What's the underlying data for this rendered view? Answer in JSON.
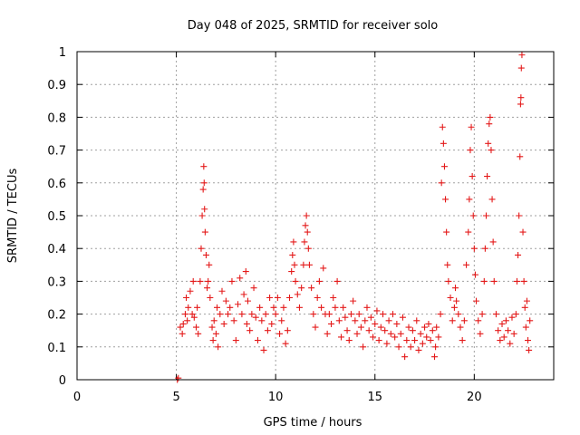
{
  "chart_data": {
    "type": "scatter",
    "title": "Day 048 of 2025, SRMTID for receiver solo",
    "xlabel": "GPS time / hours",
    "ylabel": "SRMTID / TECUs",
    "xlim": [
      0,
      24
    ],
    "ylim": [
      0,
      1
    ],
    "xticks": [
      0,
      5,
      10,
      15,
      20
    ],
    "yticks": [
      0,
      0.1,
      0.2,
      0.3,
      0.4,
      0.5,
      0.6,
      0.7,
      0.8,
      0.9,
      1
    ],
    "xtick_labels": [
      "0",
      "5",
      "10",
      "15",
      "20"
    ],
    "ytick_labels": [
      "0",
      "0.1",
      "0.2",
      "0.3",
      "0.4",
      "0.5",
      "0.6",
      "0.7",
      "0.8",
      "0.9",
      "1"
    ],
    "grid": true,
    "marker": "+",
    "series": [
      {
        "name": "SRMTID",
        "color": "#e41a1a",
        "points": [
          [
            5.05,
            0.0
          ],
          [
            5.1,
            0.005
          ],
          [
            5.2,
            0.16
          ],
          [
            5.3,
            0.14
          ],
          [
            5.35,
            0.17
          ],
          [
            5.45,
            0.2
          ],
          [
            5.5,
            0.25
          ],
          [
            5.55,
            0.18
          ],
          [
            5.6,
            0.22
          ],
          [
            5.7,
            0.27
          ],
          [
            5.8,
            0.2
          ],
          [
            5.85,
            0.3
          ],
          [
            5.9,
            0.19
          ],
          [
            6.0,
            0.16
          ],
          [
            6.05,
            0.22
          ],
          [
            6.1,
            0.14
          ],
          [
            6.2,
            0.3
          ],
          [
            6.25,
            0.4
          ],
          [
            6.3,
            0.5
          ],
          [
            6.35,
            0.58
          ],
          [
            6.38,
            0.65
          ],
          [
            6.4,
            0.6
          ],
          [
            6.42,
            0.52
          ],
          [
            6.45,
            0.45
          ],
          [
            6.5,
            0.38
          ],
          [
            6.55,
            0.28
          ],
          [
            6.6,
            0.3
          ],
          [
            6.65,
            0.35
          ],
          [
            6.7,
            0.25
          ],
          [
            6.8,
            0.16
          ],
          [
            6.85,
            0.12
          ],
          [
            6.9,
            0.18
          ],
          [
            7.0,
            0.14
          ],
          [
            7.05,
            0.22
          ],
          [
            7.1,
            0.1
          ],
          [
            7.2,
            0.2
          ],
          [
            7.3,
            0.27
          ],
          [
            7.4,
            0.17
          ],
          [
            7.5,
            0.24
          ],
          [
            7.6,
            0.2
          ],
          [
            7.7,
            0.22
          ],
          [
            7.8,
            0.3
          ],
          [
            7.9,
            0.18
          ],
          [
            8.0,
            0.12
          ],
          [
            8.1,
            0.23
          ],
          [
            8.2,
            0.31
          ],
          [
            8.3,
            0.2
          ],
          [
            8.4,
            0.26
          ],
          [
            8.5,
            0.33
          ],
          [
            8.55,
            0.17
          ],
          [
            8.6,
            0.24
          ],
          [
            8.7,
            0.15
          ],
          [
            8.8,
            0.2
          ],
          [
            8.9,
            0.28
          ],
          [
            9.0,
            0.19
          ],
          [
            9.1,
            0.12
          ],
          [
            9.2,
            0.22
          ],
          [
            9.3,
            0.18
          ],
          [
            9.4,
            0.09
          ],
          [
            9.5,
            0.2
          ],
          [
            9.6,
            0.15
          ],
          [
            9.7,
            0.25
          ],
          [
            9.8,
            0.17
          ],
          [
            9.9,
            0.22
          ],
          [
            10.0,
            0.2
          ],
          [
            10.1,
            0.25
          ],
          [
            10.2,
            0.14
          ],
          [
            10.3,
            0.18
          ],
          [
            10.4,
            0.22
          ],
          [
            10.5,
            0.11
          ],
          [
            10.6,
            0.15
          ],
          [
            10.7,
            0.25
          ],
          [
            10.8,
            0.33
          ],
          [
            10.85,
            0.38
          ],
          [
            10.9,
            0.42
          ],
          [
            10.95,
            0.35
          ],
          [
            11.0,
            0.3
          ],
          [
            11.1,
            0.26
          ],
          [
            11.2,
            0.22
          ],
          [
            11.3,
            0.28
          ],
          [
            11.4,
            0.35
          ],
          [
            11.45,
            0.42
          ],
          [
            11.5,
            0.47
          ],
          [
            11.55,
            0.5
          ],
          [
            11.6,
            0.45
          ],
          [
            11.65,
            0.4
          ],
          [
            11.7,
            0.35
          ],
          [
            11.8,
            0.28
          ],
          [
            11.9,
            0.2
          ],
          [
            12.0,
            0.16
          ],
          [
            12.1,
            0.25
          ],
          [
            12.2,
            0.3
          ],
          [
            12.3,
            0.22
          ],
          [
            12.4,
            0.34
          ],
          [
            12.5,
            0.2
          ],
          [
            12.6,
            0.14
          ],
          [
            12.7,
            0.2
          ],
          [
            12.8,
            0.17
          ],
          [
            12.9,
            0.25
          ],
          [
            13.0,
            0.22
          ],
          [
            13.1,
            0.3
          ],
          [
            13.2,
            0.18
          ],
          [
            13.3,
            0.13
          ],
          [
            13.4,
            0.22
          ],
          [
            13.5,
            0.19
          ],
          [
            13.6,
            0.15
          ],
          [
            13.7,
            0.12
          ],
          [
            13.8,
            0.2
          ],
          [
            13.9,
            0.24
          ],
          [
            14.0,
            0.18
          ],
          [
            14.1,
            0.14
          ],
          [
            14.2,
            0.2
          ],
          [
            14.3,
            0.16
          ],
          [
            14.4,
            0.1
          ],
          [
            14.5,
            0.18
          ],
          [
            14.6,
            0.22
          ],
          [
            14.7,
            0.15
          ],
          [
            14.8,
            0.19
          ],
          [
            14.9,
            0.13
          ],
          [
            15.0,
            0.17
          ],
          [
            15.1,
            0.21
          ],
          [
            15.2,
            0.12
          ],
          [
            15.3,
            0.16
          ],
          [
            15.4,
            0.2
          ],
          [
            15.5,
            0.15
          ],
          [
            15.6,
            0.11
          ],
          [
            15.7,
            0.18
          ],
          [
            15.8,
            0.14
          ],
          [
            15.9,
            0.2
          ],
          [
            16.0,
            0.13
          ],
          [
            16.1,
            0.17
          ],
          [
            16.2,
            0.1
          ],
          [
            16.3,
            0.14
          ],
          [
            16.4,
            0.19
          ],
          [
            16.5,
            0.07
          ],
          [
            16.6,
            0.12
          ],
          [
            16.7,
            0.16
          ],
          [
            16.8,
            0.1
          ],
          [
            16.9,
            0.15
          ],
          [
            17.0,
            0.12
          ],
          [
            17.1,
            0.18
          ],
          [
            17.2,
            0.09
          ],
          [
            17.3,
            0.14
          ],
          [
            17.4,
            0.11
          ],
          [
            17.5,
            0.16
          ],
          [
            17.6,
            0.13
          ],
          [
            17.7,
            0.17
          ],
          [
            17.8,
            0.12
          ],
          [
            17.9,
            0.15
          ],
          [
            18.0,
            0.07
          ],
          [
            18.05,
            0.1
          ],
          [
            18.1,
            0.16
          ],
          [
            18.2,
            0.13
          ],
          [
            18.3,
            0.2
          ],
          [
            18.35,
            0.6
          ],
          [
            18.4,
            0.77
          ],
          [
            18.45,
            0.72
          ],
          [
            18.5,
            0.65
          ],
          [
            18.55,
            0.55
          ],
          [
            18.6,
            0.45
          ],
          [
            18.65,
            0.35
          ],
          [
            18.7,
            0.3
          ],
          [
            18.8,
            0.25
          ],
          [
            18.9,
            0.18
          ],
          [
            19.0,
            0.22
          ],
          [
            19.05,
            0.28
          ],
          [
            19.1,
            0.24
          ],
          [
            19.2,
            0.2
          ],
          [
            19.3,
            0.16
          ],
          [
            19.4,
            0.12
          ],
          [
            19.5,
            0.18
          ],
          [
            19.6,
            0.35
          ],
          [
            19.7,
            0.45
          ],
          [
            19.75,
            0.55
          ],
          [
            19.8,
            0.7
          ],
          [
            19.85,
            0.77
          ],
          [
            19.9,
            0.62
          ],
          [
            19.95,
            0.5
          ],
          [
            20.0,
            0.4
          ],
          [
            20.05,
            0.32
          ],
          [
            20.1,
            0.24
          ],
          [
            20.2,
            0.18
          ],
          [
            20.3,
            0.14
          ],
          [
            20.4,
            0.2
          ],
          [
            20.5,
            0.3
          ],
          [
            20.55,
            0.4
          ],
          [
            20.6,
            0.5
          ],
          [
            20.65,
            0.62
          ],
          [
            20.7,
            0.72
          ],
          [
            20.75,
            0.78
          ],
          [
            20.8,
            0.8
          ],
          [
            20.85,
            0.7
          ],
          [
            20.9,
            0.55
          ],
          [
            20.95,
            0.42
          ],
          [
            21.0,
            0.3
          ],
          [
            21.1,
            0.2
          ],
          [
            21.2,
            0.15
          ],
          [
            21.3,
            0.12
          ],
          [
            21.4,
            0.17
          ],
          [
            21.5,
            0.13
          ],
          [
            21.6,
            0.18
          ],
          [
            21.7,
            0.15
          ],
          [
            21.8,
            0.11
          ],
          [
            21.9,
            0.19
          ],
          [
            22.0,
            0.14
          ],
          [
            22.1,
            0.2
          ],
          [
            22.15,
            0.3
          ],
          [
            22.2,
            0.38
          ],
          [
            22.25,
            0.5
          ],
          [
            22.3,
            0.68
          ],
          [
            22.33,
            0.84
          ],
          [
            22.35,
            0.86
          ],
          [
            22.37,
            0.95
          ],
          [
            22.4,
            0.99
          ],
          [
            22.45,
            0.45
          ],
          [
            22.5,
            0.3
          ],
          [
            22.55,
            0.22
          ],
          [
            22.6,
            0.16
          ],
          [
            22.65,
            0.24
          ],
          [
            22.7,
            0.12
          ],
          [
            22.75,
            0.09
          ],
          [
            22.8,
            0.18
          ]
        ]
      }
    ]
  }
}
